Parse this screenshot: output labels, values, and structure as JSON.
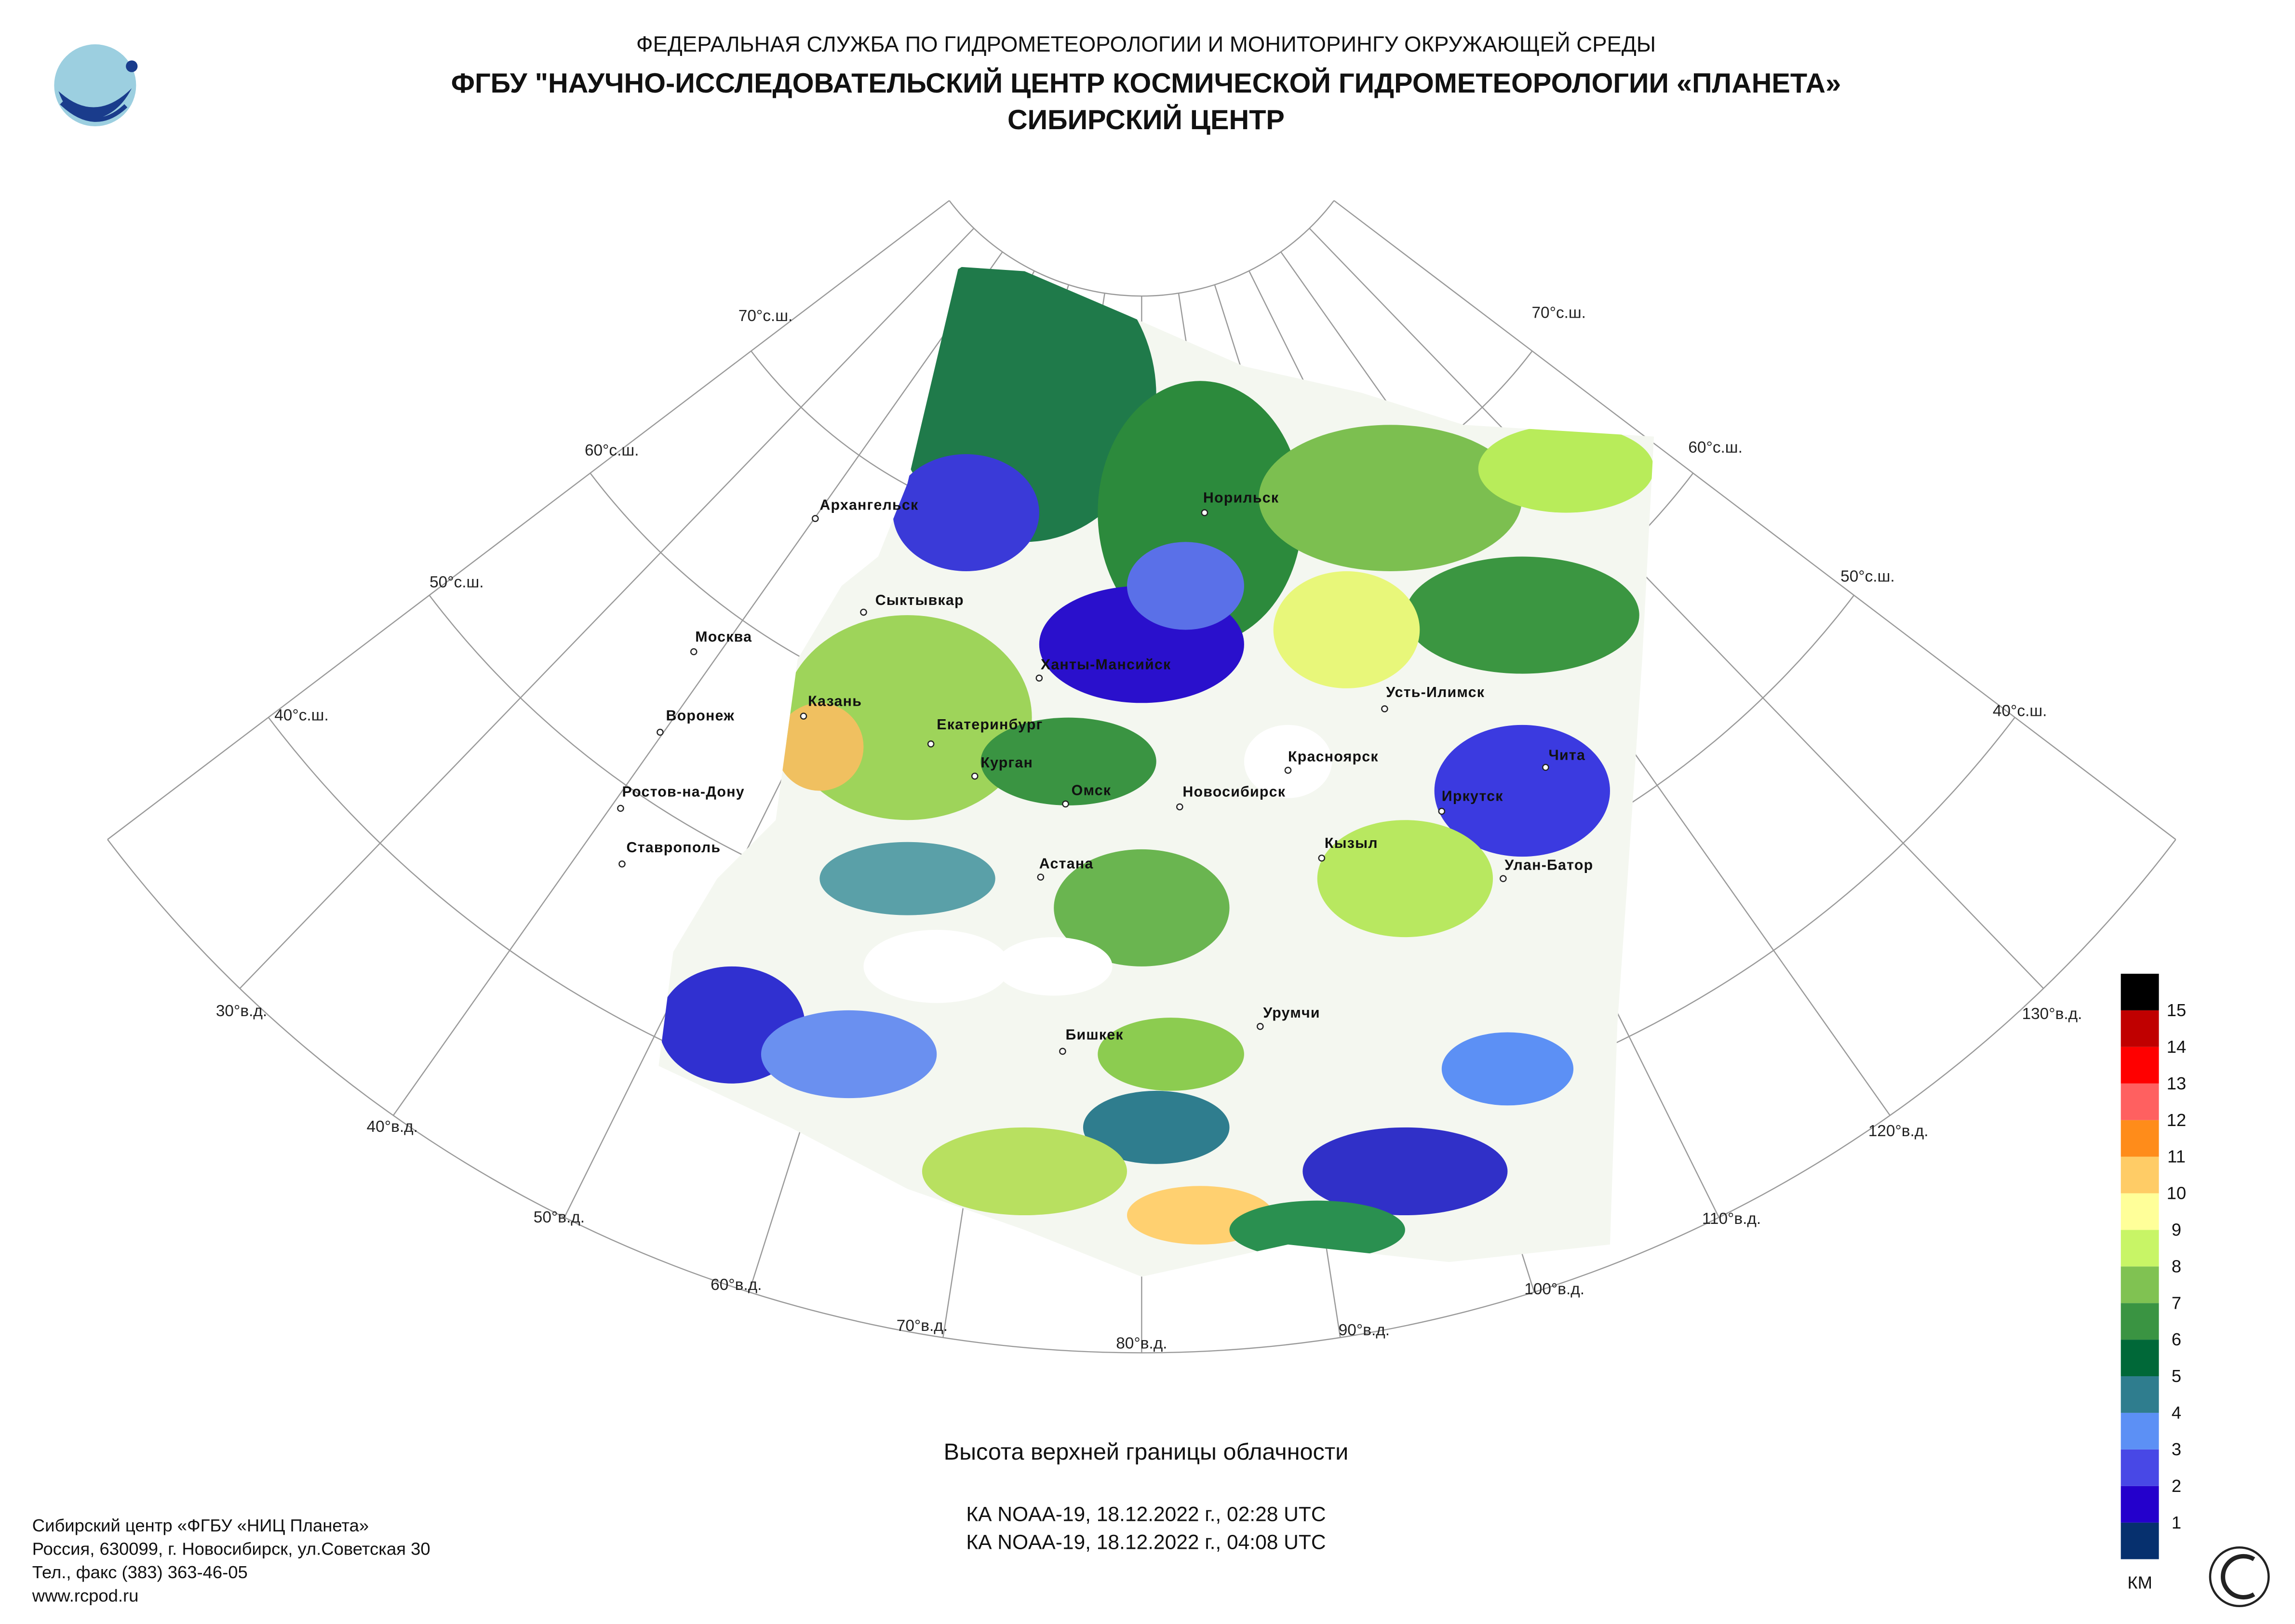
{
  "header": {
    "agency": "ФЕДЕРАЛЬНАЯ СЛУЖБА ПО ГИДРОМЕТЕОРОЛОГИИ И МОНИТОРИНГУ ОКРУЖАЮЩЕЙ СРЕДЫ",
    "institute": "ФГБУ \"НАУЧНО-ИССЛЕДОВАТЕЛЬСКИЙ ЦЕНТР КОСМИЧЕСКОЙ ГИДРОМЕТЕОРОЛОГИИ «ПЛАНЕТА»",
    "center": "СИБИРСКИЙ ЦЕНТР"
  },
  "map": {
    "parallel_labels": [
      "70°с.ш.",
      "60°с.ш.",
      "50°с.ш.",
      "40°с.ш."
    ],
    "meridian_labels": [
      "30°в.д.",
      "40°в.д.",
      "50°в.д.",
      "60°в.д.",
      "70°в.д.",
      "80°в.д.",
      "90°в.д.",
      "100°в.д.",
      "110°в.д.",
      "120°в.д.",
      "130°в.д."
    ],
    "cities": [
      "Архангельск",
      "Норильск",
      "Сыктывкар",
      "Москва",
      "Ханты-Мансийск",
      "Казань",
      "Воронеж",
      "Екатеринбург",
      "Усть-Илимск",
      "Курган",
      "Красноярск",
      "Чита",
      "Ростов-на-Дону",
      "Омск",
      "Новосибирск",
      "Иркутск",
      "Кызыл",
      "Ставрополь",
      "Астана",
      "Улан-Батор",
      "Урумчи",
      "Бишкек"
    ]
  },
  "legend": {
    "colors": [
      "#06306e",
      "#2400cc",
      "#4848e6",
      "#5c90f5",
      "#2f7d8e",
      "#006838",
      "#3a9442",
      "#80c252",
      "#c8f566",
      "#ffff99",
      "#ffcc66",
      "#ff8c1a",
      "#ff6060",
      "#ff0000",
      "#c00000",
      "#000000"
    ],
    "labels": [
      "1",
      "2",
      "3",
      "4",
      "5",
      "6",
      "7",
      "8",
      "9",
      "10",
      "11",
      "12",
      "13",
      "14",
      "15"
    ],
    "unit": "КМ"
  },
  "title": "Высота верхней границы облачности",
  "passes": [
    "КА NOAA-19, 18.12.2022 г., 02:28 UTC",
    "КА NOAA-19, 18.12.2022 г., 04:08 UTC"
  ],
  "footer": [
    "Сибирский центр «ФГБУ «НИЦ Планета»",
    "Россия, 630099, г. Новосибирск, ул.Советская 30",
    "Тел., факс (383) 363-46-05",
    "www.rcpod.ru"
  ]
}
